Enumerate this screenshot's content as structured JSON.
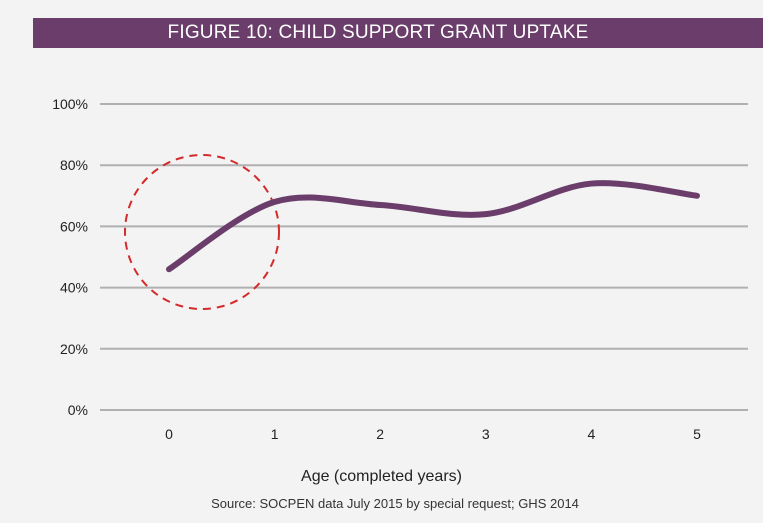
{
  "chart_data": {
    "type": "line",
    "title": "FIGURE 10: CHILD SUPPORT GRANT UPTAKE",
    "xlabel": "Age (completed years)",
    "ylabel": "",
    "source": "Source: SOCPEN data July 2015 by special request; GHS 2014",
    "x": [
      0,
      1,
      2,
      3,
      4,
      5
    ],
    "x_ticks": [
      "0",
      "1",
      "2",
      "3",
      "4",
      "5"
    ],
    "y_ticks": [
      "0%",
      "20%",
      "40%",
      "60%",
      "80%",
      "100%"
    ],
    "ylim": [
      0,
      100
    ],
    "grid": true,
    "series": [
      {
        "values": [
          46,
          68,
          67,
          64,
          74,
          70
        ]
      }
    ],
    "annotation": "dashed circle highlighting age 0",
    "colors": {
      "line": "#6a3d6a",
      "circle": "#d42a2a",
      "grid": "#b0b0b0",
      "title_bg": "#6a3d6a"
    }
  }
}
